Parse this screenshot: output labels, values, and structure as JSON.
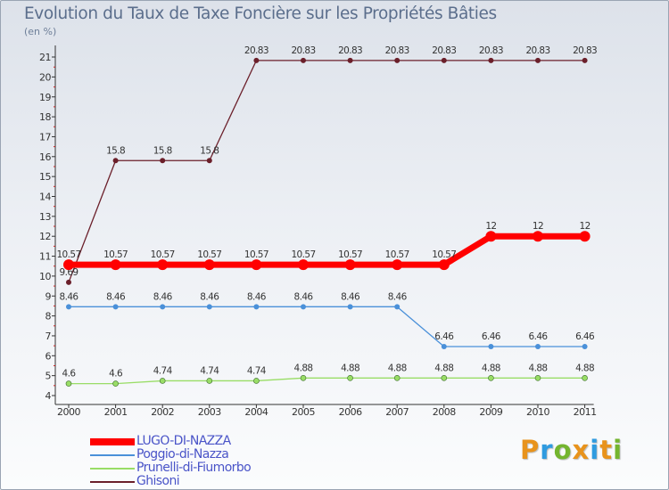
{
  "colors": {
    "lugo": "#ff0000",
    "poggio": "#4a90d9",
    "prunelli": "#99dd66",
    "ghisoni": "#6b1f2a",
    "axis": "#333333",
    "grid_text": "#333333",
    "title": "#5b6e8c",
    "legend_text": "#4a54c8"
  },
  "chart_data": {
    "type": "line",
    "title": "Evolution du Taux de Taxe Foncière sur les Propriétés Bâties",
    "subtitle": "(en %)",
    "xlabel": "",
    "ylabel": "(en %)",
    "ylim": [
      4,
      21
    ],
    "yticks": [
      "4",
      "5",
      "6",
      "7",
      "8",
      "9",
      "10",
      "11",
      "12",
      "13",
      "14",
      "15",
      "16",
      "17",
      "18",
      "19",
      "20",
      "21"
    ],
    "x": [
      "2000",
      "2001",
      "2002",
      "2003",
      "2004",
      "2005",
      "2006",
      "2007",
      "2008",
      "2009",
      "2010",
      "2011"
    ],
    "series": [
      {
        "key": "lugo",
        "name": "LUGO-DI-NAZZA",
        "values": [
          10.57,
          10.57,
          10.57,
          10.57,
          10.57,
          10.57,
          10.57,
          10.57,
          10.57,
          12,
          12,
          12
        ],
        "labels": [
          "10.57",
          "10.57",
          "10.57",
          "10.57",
          "10.57",
          "10.57",
          "10.57",
          "10.57",
          "10.57",
          "12",
          "12",
          "12"
        ]
      },
      {
        "key": "poggio",
        "name": "Poggio-di-Nazza",
        "values": [
          8.46,
          8.46,
          8.46,
          8.46,
          8.46,
          8.46,
          8.46,
          8.46,
          6.46,
          6.46,
          6.46,
          6.46
        ],
        "labels": [
          "8.46",
          "8.46",
          "8.46",
          "8.46",
          "8.46",
          "8.46",
          "8.46",
          "8.46",
          "6.46",
          "6.46",
          "6.46",
          "6.46"
        ]
      },
      {
        "key": "prunelli",
        "name": "Prunelli-di-Fiumorbo",
        "values": [
          4.6,
          4.6,
          4.74,
          4.74,
          4.74,
          4.88,
          4.88,
          4.88,
          4.88,
          4.88,
          4.88,
          4.88
        ],
        "labels": [
          "4.6",
          "4.6",
          "4.74",
          "4.74",
          "4.74",
          "4.88",
          "4.88",
          "4.88",
          "4.88",
          "4.88",
          "4.88",
          "4.88"
        ]
      },
      {
        "key": "ghisoni",
        "name": "Ghisoni",
        "values": [
          9.69,
          15.8,
          15.8,
          15.8,
          20.83,
          20.83,
          20.83,
          20.83,
          20.83,
          20.83,
          20.83,
          20.83
        ],
        "labels": [
          "9.69",
          "15.8",
          "15.8",
          "15.8",
          "20.83",
          "20.83",
          "20.83",
          "20.83",
          "20.83",
          "20.83",
          "20.83",
          "20.83"
        ]
      }
    ],
    "legend_position": "bottom-left"
  },
  "brand": {
    "letters": [
      "P",
      "r",
      "o",
      "x",
      "i",
      "t",
      "i"
    ],
    "letter_colors": [
      "#e8931c",
      "#2f9be0",
      "#74b52f",
      "#e8931c",
      "#2f9be0",
      "#e8931c",
      "#74b52f"
    ]
  }
}
